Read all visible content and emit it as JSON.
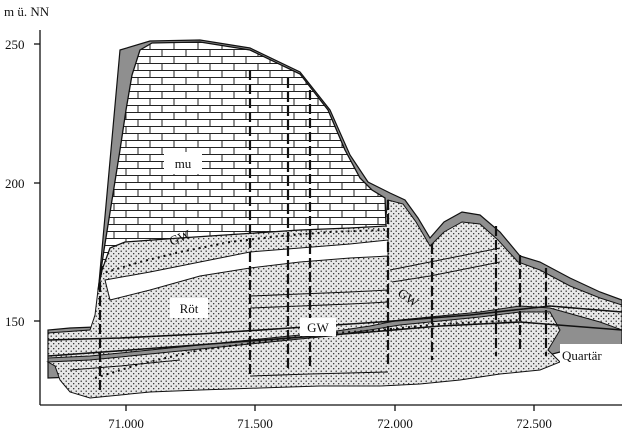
{
  "axis": {
    "y_unit": "m ü. NN",
    "y_ticks": [
      {
        "value": 150,
        "label": "150"
      },
      {
        "value": 200,
        "label": "200"
      },
      {
        "value": 250,
        "label": "250"
      }
    ],
    "x_ticks": [
      {
        "value": 71000,
        "label": "71.000"
      },
      {
        "value": 71500,
        "label": "71.500"
      },
      {
        "value": 72000,
        "label": "72.000"
      },
      {
        "value": 72500,
        "label": "72.500"
      }
    ]
  },
  "labels": {
    "mu": "mu",
    "gw_upper": "GW",
    "roet": "Röt",
    "gw_lower": "GW",
    "gw_right": "GW",
    "quartaer": "Quartär"
  },
  "colors": {
    "ink": "#111111",
    "quaternary_fill": "#8a8a8a",
    "stipple_fill": "#e6e6e6",
    "limestone_fill": "#ffffff"
  }
}
